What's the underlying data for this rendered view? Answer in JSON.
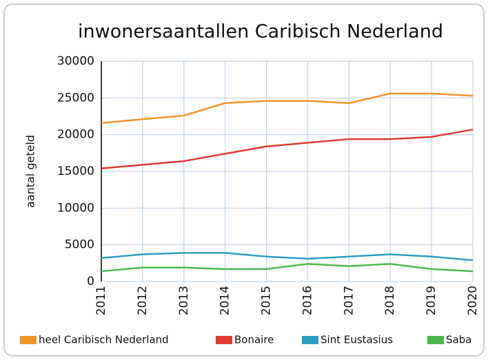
{
  "chart_data": {
    "type": "line",
    "title": "inwonersaantallen Caribisch Nederland",
    "y_label": "aantal geteld",
    "categories": [
      "2011",
      "2012",
      "2013",
      "2014",
      "2015",
      "2016",
      "2017",
      "2018",
      "2019",
      "2020"
    ],
    "series": [
      {
        "name": "heel Caribisch Nederland",
        "color": "#f0952a",
        "values": [
          21600,
          22100,
          22600,
          24300,
          24600,
          24600,
          24300,
          25600,
          25600,
          25300
        ]
      },
      {
        "name": "Bonaire",
        "color": "#e03a32",
        "values": [
          15400,
          15900,
          16400,
          17400,
          18400,
          18900,
          19400,
          19400,
          19700,
          20700
        ]
      },
      {
        "name": "Sint Eustasius",
        "color": "#2a9fc2",
        "values": [
          3200,
          3700,
          3900,
          3900,
          3400,
          3100,
          3400,
          3700,
          3400,
          2900
        ]
      },
      {
        "name": "Saba",
        "color": "#4cb84c",
        "values": [
          1400,
          1900,
          1900,
          1700,
          1700,
          2400,
          2100,
          2400,
          1700,
          1400
        ]
      }
    ],
    "ylim": [
      0,
      30000
    ],
    "yticks": [
      0,
      5000,
      10000,
      15000,
      20000,
      25000,
      30000
    ],
    "grid": true
  }
}
